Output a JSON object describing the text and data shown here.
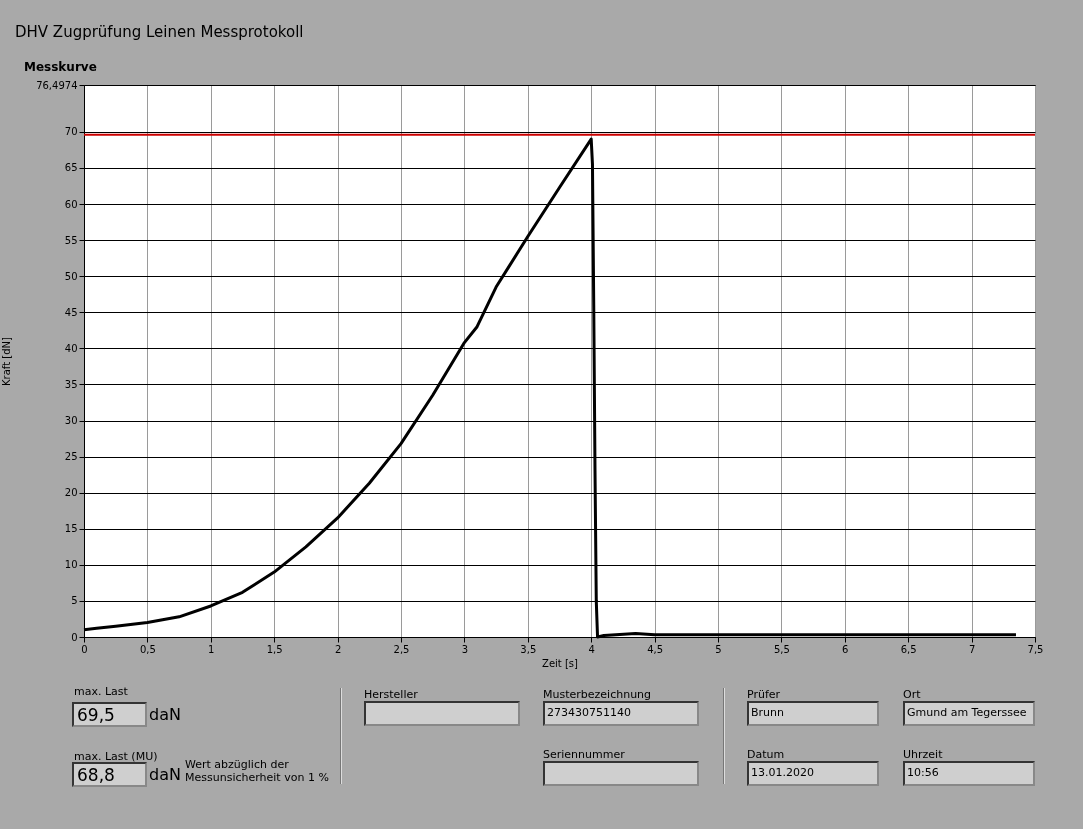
{
  "chart_data": {
    "type": "line",
    "title": "DHV Zugprüfung Leinen Messprotokoll",
    "subtitle": "Messkurve",
    "xlabel": "Zeit [s]",
    "ylabel": "Kraft [dN]",
    "x": [
      0,
      0.1,
      0.25,
      0.5,
      0.75,
      1,
      1.25,
      1.5,
      1.75,
      2,
      2.25,
      2.5,
      2.75,
      3,
      3.1,
      3.25,
      3.5,
      3.75,
      4,
      4.01,
      4.02,
      4.03,
      4.04,
      4.05,
      4.1,
      4.35,
      4.5,
      5,
      5.5,
      6,
      6.5,
      7,
      7.35
    ],
    "series": [
      {
        "color": "#000000",
        "values": [
          1,
          1.2,
          1.5,
          2,
          2.8,
          4.3,
          6.2,
          9,
          12.5,
          16.5,
          21.3,
          26.8,
          33.5,
          40.8,
          43,
          48.5,
          55.5,
          62.3,
          69,
          65.5,
          46,
          23,
          5,
          0,
          0.2,
          0.5,
          0.3,
          0.3,
          0.3,
          0.3,
          0.3,
          0.3,
          0.3
        ]
      }
    ],
    "xlim": [
      0,
      7.5
    ],
    "xticks": [
      0,
      {
        "value": 0.5,
        "label": "0,5"
      },
      1,
      {
        "value": 1.5,
        "label": "1,5"
      },
      2,
      {
        "value": 2.5,
        "label": "2,5"
      },
      3,
      {
        "value": 3.5,
        "label": "3,5"
      },
      4,
      {
        "value": 4.5,
        "label": "4,5"
      },
      5,
      {
        "value": 5.5,
        "label": "5,5"
      },
      6,
      {
        "value": 6.5,
        "label": "6,5"
      },
      7,
      {
        "value": 7.5,
        "label": "7,5"
      }
    ],
    "ylim": [
      0,
      76.4974
    ],
    "yticks": [
      0,
      5,
      10,
      15,
      20,
      25,
      30,
      35,
      40,
      45,
      50,
      55,
      60,
      65,
      70,
      {
        "value": 76.4974,
        "label": "76,4974"
      }
    ],
    "grid": true,
    "marker": "none",
    "line_style": "solid",
    "ref_lines": [
      {
        "axis": "y",
        "value": 69.6,
        "color": "#cc0000"
      }
    ],
    "annotations": [
      "max. Last",
      "69,5",
      "daN",
      "max. Last (MU)",
      "68,8",
      "daN",
      "Wert abzüglich der Messunsicherheit von 1 %",
      "Hersteller",
      "Musterbezeichnung",
      "273430751140",
      "Seriennummer",
      "Prüfer",
      "Brunn",
      "Datum",
      "13.01.2020",
      "Ort",
      "Gmund am Tegerssee",
      "Uhrzeit",
      "10:56"
    ]
  }
}
